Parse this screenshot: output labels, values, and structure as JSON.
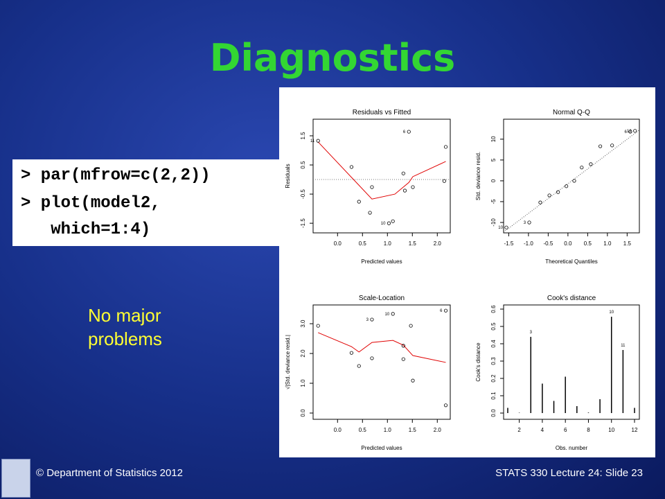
{
  "slide": {
    "title": "Diagnostics",
    "code": [
      "> par(mfrow=c(2,2))",
      "> plot(model2,",
      "   which=1:4)"
    ],
    "note": "No major problems",
    "footer_left": "© Department of Statistics 2012",
    "footer_right": "STATS 330 Lecture 24: Slide 23"
  },
  "chart_data": [
    {
      "type": "scatter",
      "title": "Residuals vs Fitted",
      "xlabel": "Predicted values",
      "ylabel": "Residuals",
      "xlim": [
        -0.49,
        2.26
      ],
      "ylim": [
        -1.83,
        2.07
      ],
      "xticks": [
        {
          "value": 0,
          "label": "0.0"
        },
        0.5,
        {
          "value": 1,
          "label": "1.0"
        },
        1.5,
        {
          "value": 2,
          "label": "2.0"
        }
      ],
      "yticks": [
        -1.5,
        -0.5,
        0.5,
        1.5
      ],
      "x": [
        -0.39,
        0.28,
        0.43,
        0.65,
        0.69,
        1.03,
        1.11,
        1.32,
        1.35,
        1.43,
        1.51,
        2.17,
        2.14
      ],
      "values": [
        1.33,
        0.43,
        -0.76,
        -1.14,
        -0.26,
        -1.5,
        -1.43,
        0.21,
        -0.38,
        1.64,
        -0.26,
        1.12,
        -0.05
      ],
      "point_labels": [
        "11",
        null,
        null,
        null,
        null,
        "10",
        null,
        null,
        null,
        "6",
        null,
        null,
        null
      ],
      "hline": 0,
      "smooth": {
        "x": [
          -0.39,
          0.69,
          1.15,
          1.43,
          1.51,
          2.17
        ],
        "values": [
          1.29,
          -0.67,
          -0.5,
          -0.1,
          0.1,
          0.62
        ]
      }
    },
    {
      "type": "scatter",
      "title": "Normal Q-Q",
      "xlabel": "Theoretical Quantiles",
      "ylabel": "Std. deviance resid.",
      "xlim": [
        -1.63,
        1.81
      ],
      "ylim": [
        -12.5,
        14.8
      ],
      "xticks": [
        -1.5,
        {
          "value": -1,
          "label": "-1.0"
        },
        -0.5,
        {
          "value": 0,
          "label": "0.0"
        },
        0.5,
        {
          "value": 1,
          "label": "1.0"
        },
        1.5
      ],
      "yticks": [
        -10,
        -5,
        0,
        5,
        10
      ],
      "x": [
        -1.56,
        -0.98,
        -0.7,
        -0.47,
        -0.25,
        -0.04,
        0.16,
        0.35,
        0.58,
        0.82,
        1.12,
        1.58,
        1.7
      ],
      "values": [
        -11.2,
        -10,
        -5.2,
        -3.5,
        -2.7,
        -1.3,
        0,
        3.2,
        4,
        8.3,
        8.5,
        11.8,
        12
      ],
      "point_labels": [
        "10",
        "3",
        null,
        null,
        null,
        null,
        null,
        null,
        null,
        null,
        null,
        "6",
        "12"
      ],
      "reference_line": {
        "x": [
          -1.63,
          1.81
        ],
        "values": [
          -12.3,
          12.2
        ]
      }
    },
    {
      "type": "scatter",
      "title": "Scale-Location",
      "xlabel": "Predicted values",
      "ylabel": "√|Std. deviance resid.|",
      "xlim": [
        -0.49,
        2.26
      ],
      "ylim": [
        -0.21,
        3.63
      ],
      "xticks": [
        {
          "value": 0,
          "label": "0.0"
        },
        0.5,
        {
          "value": 1,
          "label": "1.0"
        },
        1.5,
        {
          "value": 2,
          "label": "2.0"
        }
      ],
      "yticks": [
        {
          "value": 0,
          "label": "0.0"
        },
        {
          "value": 1,
          "label": "1.0"
        },
        {
          "value": 2,
          "label": "2.0"
        },
        {
          "value": 3,
          "label": "3.0"
        }
      ],
      "x": [
        -0.39,
        0.28,
        0.43,
        0.69,
        0.69,
        1.11,
        1.32,
        1.32,
        1.47,
        1.51,
        2.17,
        2.17
      ],
      "values": [
        2.93,
        2.02,
        1.58,
        3.14,
        1.84,
        3.33,
        1.81,
        2.26,
        2.93,
        1.09,
        0.26,
        3.44
      ],
      "point_labels": [
        null,
        null,
        null,
        "3",
        null,
        "10",
        null,
        null,
        null,
        null,
        null,
        "6"
      ],
      "smooth": {
        "x": [
          -0.39,
          0.28,
          0.43,
          0.69,
          1.11,
          1.32,
          1.51,
          2.17
        ],
        "values": [
          2.7,
          2.23,
          2.05,
          2.37,
          2.44,
          2.28,
          1.93,
          1.7
        ]
      }
    },
    {
      "type": "bar",
      "title": "Cook's distance",
      "xlabel": "Obs. number",
      "ylabel": "Cook's distance",
      "xlim": [
        0.64,
        12.42
      ],
      "ylim": [
        -0.036,
        0.624
      ],
      "xticks": [
        2,
        4,
        6,
        8,
        10,
        12
      ],
      "yticks": [
        {
          "value": 0,
          "label": "0.0"
        },
        0.1,
        0.2,
        0.3,
        0.4,
        0.5,
        0.6
      ],
      "x": [
        1,
        2,
        3,
        4,
        5,
        6,
        7,
        8,
        9,
        10,
        11,
        12
      ],
      "values": [
        0.03,
        0.002,
        0.44,
        0.17,
        0.07,
        0.21,
        0.04,
        0.003,
        0.08,
        0.556,
        0.364,
        0.03
      ],
      "point_labels": [
        null,
        null,
        "3",
        null,
        null,
        null,
        null,
        null,
        null,
        "10",
        "11",
        null
      ]
    }
  ]
}
